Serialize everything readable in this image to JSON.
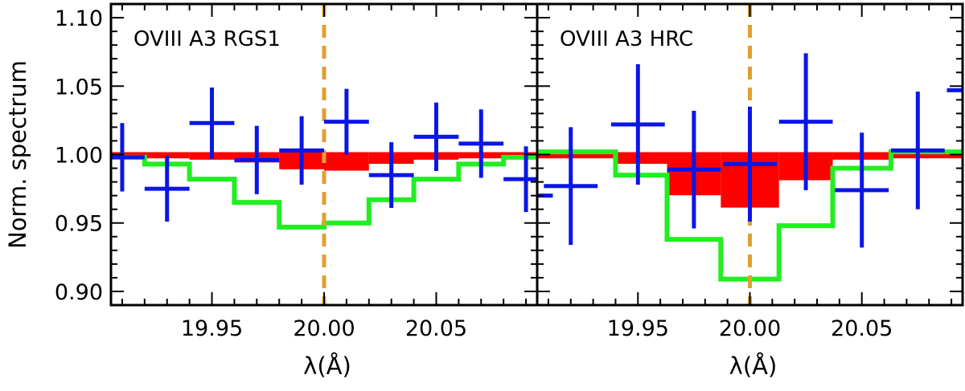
{
  "colors": {
    "data": "#0a16e6",
    "model": "#22ee22",
    "absorption": "#ff0000",
    "line_center": "#e0a030",
    "frame": "#000000"
  },
  "chart_data": [
    {
      "type": "line",
      "title": "OVIII  A3  RGS1",
      "xlabel": "λ(Å)",
      "ylabel": "Norm. spectrum",
      "xlim": [
        19.905,
        20.095
      ],
      "ylim": [
        0.89,
        1.11
      ],
      "xticks": [
        "19.95",
        "20.00",
        "20.05"
      ],
      "yticks": [
        "0.90",
        "0.95",
        "1.00",
        "1.05",
        "1.10"
      ],
      "line_center": 20.0,
      "data_points": [
        {
          "x": 19.91,
          "y": 0.998,
          "xerr": 0.01,
          "yerr": 0.025
        },
        {
          "x": 19.93,
          "y": 0.975,
          "xerr": 0.01,
          "yerr": 0.024
        },
        {
          "x": 19.95,
          "y": 1.023,
          "xerr": 0.01,
          "yerr": 0.026
        },
        {
          "x": 19.97,
          "y": 0.996,
          "xerr": 0.01,
          "yerr": 0.025
        },
        {
          "x": 19.99,
          "y": 1.003,
          "xerr": 0.01,
          "yerr": 0.025
        },
        {
          "x": 20.01,
          "y": 1.024,
          "xerr": 0.01,
          "yerr": 0.024
        },
        {
          "x": 20.03,
          "y": 0.985,
          "xerr": 0.01,
          "yerr": 0.024
        },
        {
          "x": 20.05,
          "y": 1.013,
          "xerr": 0.01,
          "yerr": 0.025
        },
        {
          "x": 20.07,
          "y": 1.008,
          "xerr": 0.01,
          "yerr": 0.025
        },
        {
          "x": 20.09,
          "y": 0.982,
          "xerr": 0.01,
          "yerr": 0.024
        }
      ],
      "model_step": {
        "edges": [
          19.905,
          19.92,
          19.94,
          19.96,
          19.98,
          20.0,
          20.02,
          20.04,
          20.06,
          20.08,
          20.095
        ],
        "values": [
          0.998,
          0.993,
          0.982,
          0.965,
          0.947,
          0.95,
          0.967,
          0.982,
          0.993,
          0.998
        ]
      },
      "absorption_step": {
        "edges": [
          19.905,
          19.94,
          19.96,
          19.98,
          20.0,
          20.02,
          20.04,
          20.06,
          20.095
        ],
        "values": [
          0.999,
          0.998,
          0.996,
          0.991,
          0.99,
          0.995,
          0.998,
          0.999
        ]
      }
    },
    {
      "type": "line",
      "title": "OVIII  A3  HRC",
      "xlabel": "λ(Å)",
      "ylabel": "",
      "xlim": [
        19.905,
        20.095
      ],
      "ylim": [
        0.89,
        1.11
      ],
      "xticks": [
        "19.95",
        "20.00",
        "20.05"
      ],
      "yticks": [],
      "line_center": 20.0,
      "data_points": [
        {
          "x": 19.9,
          "y": 0.97,
          "xerr": 0.012,
          "yerr": 0.034
        },
        {
          "x": 19.92,
          "y": 0.977,
          "xerr": 0.012,
          "yerr": 0.043
        },
        {
          "x": 19.95,
          "y": 1.022,
          "xerr": 0.012,
          "yerr": 0.044
        },
        {
          "x": 19.975,
          "y": 0.989,
          "xerr": 0.012,
          "yerr": 0.043
        },
        {
          "x": 20.0,
          "y": 0.993,
          "xerr": 0.012,
          "yerr": 0.042
        },
        {
          "x": 20.025,
          "y": 1.024,
          "xerr": 0.012,
          "yerr": 0.05
        },
        {
          "x": 20.05,
          "y": 0.974,
          "xerr": 0.012,
          "yerr": 0.042
        },
        {
          "x": 20.075,
          "y": 1.003,
          "xerr": 0.012,
          "yerr": 0.043
        },
        {
          "x": 20.1,
          "y": 1.047,
          "xerr": 0.012,
          "yerr": 0.04
        }
      ],
      "model_step": {
        "edges": [
          19.905,
          19.94,
          19.963,
          19.987,
          20.013,
          20.037,
          20.063,
          20.095
        ],
        "values": [
          1.002,
          0.985,
          0.938,
          0.909,
          0.948,
          0.99,
          1.002
        ]
      },
      "absorption_step": {
        "edges": [
          19.905,
          19.94,
          19.963,
          19.987,
          20.013,
          20.037,
          20.063,
          20.095
        ],
        "values": [
          0.999,
          0.995,
          0.972,
          0.963,
          0.983,
          0.998,
          0.999
        ]
      }
    }
  ]
}
